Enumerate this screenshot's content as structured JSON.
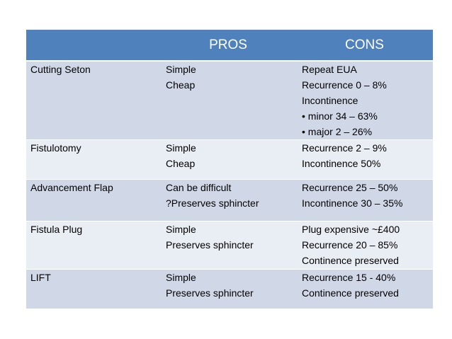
{
  "table": {
    "headers": [
      "",
      "PROS",
      "CONS"
    ],
    "rows": [
      {
        "procedure": "Cutting Seton",
        "pros": [
          "Simple",
          "Cheap"
        ],
        "cons": [
          "Repeat EUA",
          "Recurrence 0 – 8%",
          "Incontinence",
          "• minor 34 – 63%",
          "• major 2 – 26%"
        ]
      },
      {
        "procedure": "Fistulotomy",
        "pros": [
          "Simple",
          "Cheap"
        ],
        "cons": [
          "Recurrence 2 – 9%",
          "Incontinence 50%"
        ]
      },
      {
        "procedure": "Advancement Flap",
        "pros": [
          "Can be difficult",
          "?Preserves sphincter"
        ],
        "cons": [
          "Recurrence 25 – 50%",
          "Incontinence 30 – 35%"
        ]
      },
      {
        "procedure": "Fistula Plug",
        "pros": [
          "Simple",
          "Preserves sphincter"
        ],
        "cons": [
          "Plug expensive ~£400",
          "Recurrence 20 – 85%",
          "Continence preserved"
        ]
      },
      {
        "procedure": "LIFT",
        "pros": [
          "Simple",
          "Preserves sphincter"
        ],
        "cons": [
          "Recurrence 15 - 40%",
          "Continence preserved"
        ]
      }
    ]
  },
  "colors": {
    "header": "#4f81bd",
    "band_dark": "#d0d8e8",
    "band_light": "#e9edf4"
  }
}
